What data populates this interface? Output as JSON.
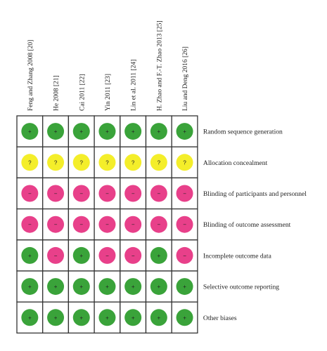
{
  "studies": [
    "Feng and Zhang 2008 [20]",
    "He 2008 [21]",
    "Cai 2011 [22]",
    "Yin 2011 [23]",
    "Lin et al. 2011 [24]",
    "H. Zhao and F.-T. Zhao 2013 [25]",
    "Liu and Deng 2016 [26]"
  ],
  "domains": [
    "Random sequence generation",
    "Allocation concealment",
    "Blinding of participants and personnel",
    "Blinding of outcome assessment",
    "Incomplete outcome data",
    "Selective outcome reporting",
    "Other biases"
  ],
  "ratings": [
    [
      "low",
      "low",
      "low",
      "low",
      "low",
      "low",
      "low"
    ],
    [
      "unclear",
      "unclear",
      "unclear",
      "unclear",
      "unclear",
      "unclear",
      "unclear"
    ],
    [
      "high",
      "high",
      "high",
      "high",
      "high",
      "high",
      "high"
    ],
    [
      "high",
      "high",
      "high",
      "high",
      "high",
      "high",
      "high"
    ],
    [
      "low",
      "high",
      "low",
      "high",
      "high",
      "low",
      "high"
    ],
    [
      "low",
      "low",
      "low",
      "low",
      "low",
      "low",
      "low"
    ],
    [
      "low",
      "low",
      "low",
      "low",
      "low",
      "low",
      "low"
    ]
  ],
  "legend": {
    "low": {
      "symbol": "+",
      "color": "#3aa33a"
    },
    "unclear": {
      "symbol": "?",
      "color": "#f4ee2a"
    },
    "high": {
      "symbol": "−",
      "color": "#e8408a"
    }
  }
}
